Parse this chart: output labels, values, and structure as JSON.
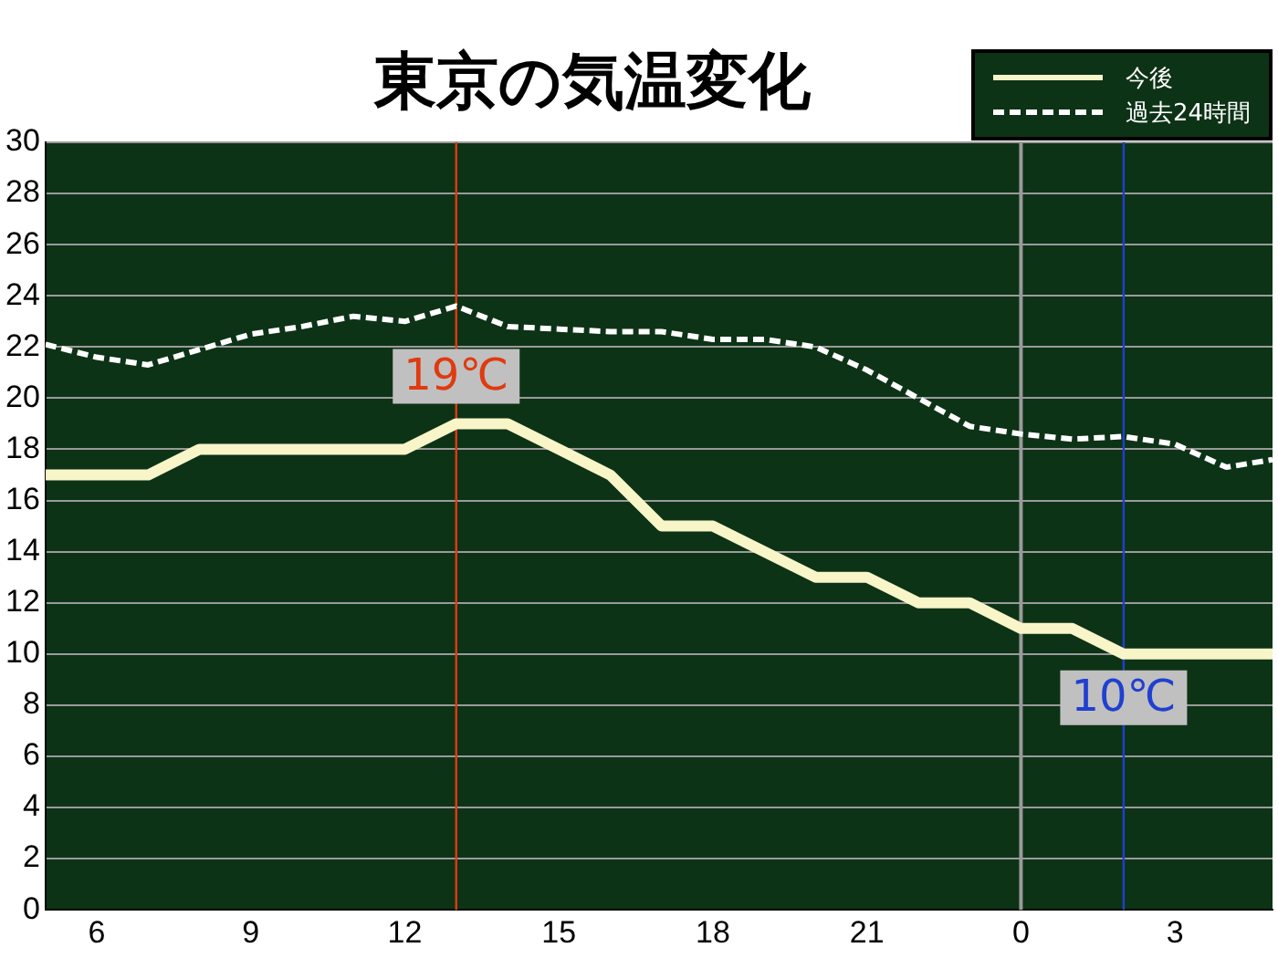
{
  "chart_data": {
    "type": "line",
    "title": "東京の気温変化",
    "xlim": [
      "--01-01T05:00",
      "--01-02T04:54"
    ],
    "xticks": [
      {
        "value": "--01-01T06:00",
        "label": "6"
      },
      {
        "value": "--01-01T09:00",
        "label": "9"
      },
      {
        "value": "--01-01T12:00",
        "label": "12"
      },
      {
        "value": "--01-01T15:00",
        "label": "15"
      },
      {
        "value": "--01-01T18:00",
        "label": "18"
      },
      {
        "value": "--01-01T21:00",
        "label": "21"
      },
      {
        "value": "--01-02T00:00",
        "label": "0"
      },
      {
        "value": "--01-02T03:00",
        "label": "3"
      }
    ],
    "ylim": [
      0,
      30
    ],
    "yticks": [
      0,
      2,
      4,
      6,
      8,
      10,
      12,
      14,
      16,
      18,
      20,
      22,
      24,
      26,
      28,
      30
    ],
    "grid": "y",
    "legend": "top right",
    "marker": "none",
    "x": [
      "--01-01T05:00",
      "--01-01T06:00",
      "--01-01T07:00",
      "--01-01T08:00",
      "--01-01T09:00",
      "--01-01T10:00",
      "--01-01T11:00",
      "--01-01T12:00",
      "--01-01T13:00",
      "--01-01T14:00",
      "--01-01T15:00",
      "--01-01T16:00",
      "--01-01T17:00",
      "--01-01T18:00",
      "--01-01T19:00",
      "--01-01T20:00",
      "--01-01T21:00",
      "--01-01T22:00",
      "--01-01T23:00",
      "--01-02T00:00",
      "--01-02T01:00",
      "--01-02T02:00",
      "--01-02T03:00",
      "--01-02T04:00",
      "--01-02T04:54"
    ],
    "series": [
      {
        "name": "今後",
        "color": "#f8f5c8",
        "line_style": "solid",
        "values": [
          17,
          17,
          17,
          18,
          18,
          18,
          18,
          18,
          19,
          19,
          18,
          17,
          15,
          15,
          14,
          13,
          13,
          12,
          12,
          11,
          11,
          10,
          10,
          10,
          10
        ]
      },
      {
        "name": "過去24時間",
        "color": "#ffffff",
        "line_style": "dashed",
        "values": [
          22.1,
          21.6,
          21.3,
          21.9,
          22.5,
          22.8,
          23.2,
          23.0,
          23.6,
          22.8,
          22.7,
          22.6,
          22.6,
          22.3,
          22.3,
          22.0,
          21.1,
          20.0,
          18.9,
          18.6,
          18.4,
          18.5,
          18.2,
          17.3,
          17.6
        ]
      }
    ],
    "ref_lines": [
      {
        "axis": "x",
        "value": "--01-01T13:00",
        "color": "#e03a10"
      },
      {
        "axis": "x",
        "value": "--01-02T00:00",
        "color": "#9a9a9a"
      },
      {
        "axis": "x",
        "value": "--01-02T02:00",
        "color": "#2040d0"
      }
    ],
    "annotations": [
      {
        "text": "19℃",
        "x": "--01-01T13:00",
        "y": 19
      },
      {
        "text": "10℃",
        "x": "--01-02T02:00",
        "y": 10
      }
    ]
  }
}
